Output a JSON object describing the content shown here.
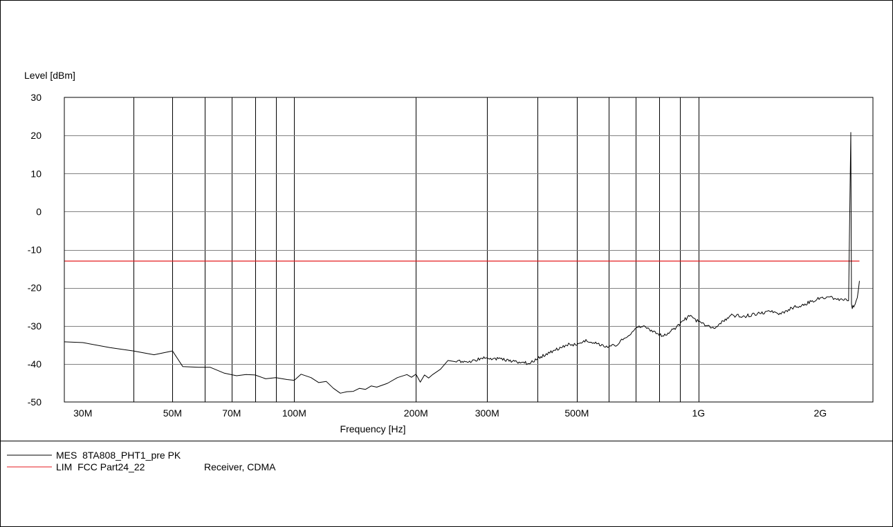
{
  "chart_data": {
    "type": "line",
    "ylabel": "Level [dBm]",
    "xlabel": "Frequency [Hz]",
    "x_scale": "log",
    "xlim": [
      27000000,
      2700000000
    ],
    "ylim": [
      -50,
      30
    ],
    "yticks": [
      30,
      20,
      10,
      0,
      -10,
      -20,
      -30,
      -40,
      -50
    ],
    "xticks": [
      {
        "label": "30M",
        "value": 30000000
      },
      {
        "label": "50M",
        "value": 50000000
      },
      {
        "label": "70M",
        "value": 70000000
      },
      {
        "label": "100M",
        "value": 100000000
      },
      {
        "label": "200M",
        "value": 200000000
      },
      {
        "label": "300M",
        "value": 300000000
      },
      {
        "label": "500M",
        "value": 500000000
      },
      {
        "label": "1G",
        "value": 1000000000
      },
      {
        "label": "2G",
        "value": 2000000000
      }
    ],
    "vgrid": [
      40000000,
      50000000,
      60000000,
      70000000,
      80000000,
      90000000,
      100000000,
      200000000,
      300000000,
      400000000,
      500000000,
      600000000,
      700000000,
      800000000,
      900000000,
      1000000000
    ],
    "hgrid": [
      20,
      10,
      0,
      -10,
      -20,
      -30,
      -40
    ],
    "series": [
      {
        "name": "MES  8TA808_PHT1_pre PK",
        "color": "#000000",
        "x": [
          27000000,
          30000000,
          35000000,
          40000000,
          45000000,
          50000000,
          53000000,
          58000000,
          62000000,
          67000000,
          72000000,
          76000000,
          80000000,
          85000000,
          90000000,
          96000000,
          100000000,
          104000000,
          110000000,
          115000000,
          120000000,
          125000000,
          130000000,
          135000000,
          140000000,
          145000000,
          150000000,
          155000000,
          160000000,
          170000000,
          180000000,
          190000000,
          195000000,
          200000000,
          205000000,
          210000000,
          215000000,
          220000000,
          230000000,
          240000000,
          250000000,
          260000000,
          270000000,
          280000000,
          300000000,
          320000000,
          340000000,
          360000000,
          380000000,
          400000000,
          420000000,
          440000000,
          460000000,
          480000000,
          500000000,
          520000000,
          540000000,
          560000000,
          580000000,
          600000000,
          620000000,
          650000000,
          680000000,
          700000000,
          730000000,
          760000000,
          790000000,
          820000000,
          850000000,
          880000000,
          910000000,
          950000000,
          1000000000,
          1050000000,
          1100000000,
          1150000000,
          1200000000,
          1300000000,
          1400000000,
          1500000000,
          1600000000,
          1700000000,
          1800000000,
          1900000000,
          2000000000,
          2100000000,
          2200000000,
          2300000000,
          2350000000,
          2380000000,
          2390000000,
          2400000000,
          2410000000,
          2420000000,
          2440000000,
          2470000000,
          2500000000
        ],
        "y": [
          -34.2,
          -34.4,
          -35.7,
          -36.6,
          -37.6,
          -36.6,
          -40.7,
          -40.9,
          -40.9,
          -42.4,
          -43.1,
          -42.8,
          -42.9,
          -43.9,
          -43.6,
          -44.1,
          -44.3,
          -42.7,
          -43.6,
          -44.9,
          -44.6,
          -46.4,
          -47.7,
          -47.3,
          -47.2,
          -46.4,
          -46.7,
          -45.8,
          -46.1,
          -45.1,
          -43.6,
          -42.8,
          -43.5,
          -42.7,
          -44.8,
          -42.9,
          -43.7,
          -42.8,
          -41.4,
          -39.1,
          -39.4,
          -39.3,
          -39.5,
          -39.0,
          -38.4,
          -38.6,
          -39.3,
          -39.5,
          -39.9,
          -38.6,
          -37.3,
          -36.4,
          -35.7,
          -34.8,
          -35.1,
          -33.9,
          -34.3,
          -34.7,
          -35.0,
          -35.5,
          -35.2,
          -33.7,
          -32.2,
          -30.7,
          -30.0,
          -31.4,
          -32.0,
          -32.7,
          -31.6,
          -30.5,
          -28.8,
          -27.5,
          -28.9,
          -30.0,
          -30.6,
          -28.7,
          -27.3,
          -27.5,
          -26.7,
          -26.2,
          -26.9,
          -25.3,
          -24.6,
          -23.6,
          -22.6,
          -22.4,
          -23.1,
          -22.9,
          -23.4,
          20.8,
          -24.3,
          -25.5,
          -24.6,
          -25.1,
          -24.3,
          -22.6,
          -18.2
        ]
      },
      {
        "name": "LIM  FCC Part24_22",
        "note": "Receiver, CDMA",
        "color": "#e41a1c",
        "x": [
          27000000,
          2500000000
        ],
        "y": [
          -13,
          -13
        ]
      }
    ]
  }
}
